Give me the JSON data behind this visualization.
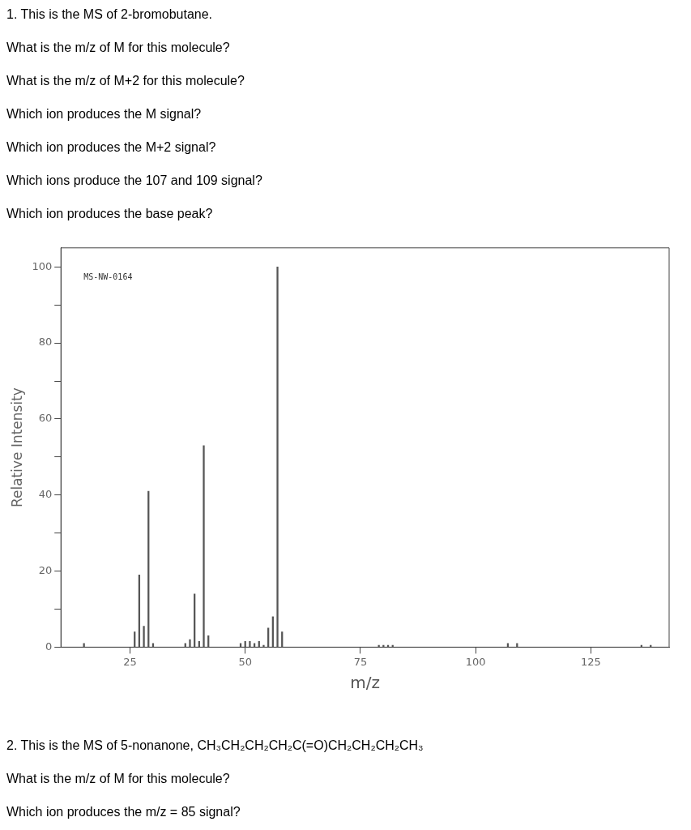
{
  "chart_data": {
    "type": "bar",
    "title": "1. This is the MS of 2-bromobutane.",
    "xlabel": "m/z",
    "ylabel": "Relative Intensity",
    "x": [
      15,
      26,
      27,
      28,
      29,
      30,
      37,
      38,
      39,
      40,
      41,
      42,
      49,
      50,
      51,
      52,
      53,
      54,
      55,
      56,
      57,
      58,
      79,
      80,
      81,
      82,
      107,
      109,
      136,
      138
    ],
    "values": [
      1,
      4,
      19,
      5.5,
      41,
      1,
      1,
      2,
      14,
      1.5,
      53,
      3,
      1,
      1.5,
      1.5,
      1,
      1.5,
      0.5,
      5,
      8,
      100,
      4,
      0.5,
      0.5,
      0.5,
      0.5,
      1,
      1,
      0.5,
      0.5
    ],
    "color": "#555555",
    "xlim": [
      10,
      142
    ],
    "xticks": [
      25,
      50,
      75,
      100,
      125
    ],
    "ylim": [
      0,
      105
    ],
    "yticks": [
      0,
      {
        "value": 10,
        "label": null
      },
      20,
      {
        "value": 30,
        "label": null
      },
      40,
      {
        "value": 50,
        "label": null
      },
      60,
      {
        "value": 70,
        "label": null
      },
      80,
      {
        "value": 90,
        "label": null
      },
      100
    ],
    "grid": false,
    "legend": false,
    "annotations": [
      "MS-NW-0164",
      "What is the m/z of M for this molecule?",
      "What is the m/z of M+2 for this molecule?",
      "Which ion produces the M signal?",
      "Which ion produces the M+2 signal?",
      "Which ions produce the 107 and 109 signal?",
      "Which ion produces the base peak?",
      "2. This is the MS of 5-nonanone, CH₃CH₂CH₂CH₂C(=O)CH₂CH₂CH₂CH₃",
      "What is the m/z of M for this molecule?",
      "Which ion produces the m/z = 85 signal?"
    ]
  }
}
